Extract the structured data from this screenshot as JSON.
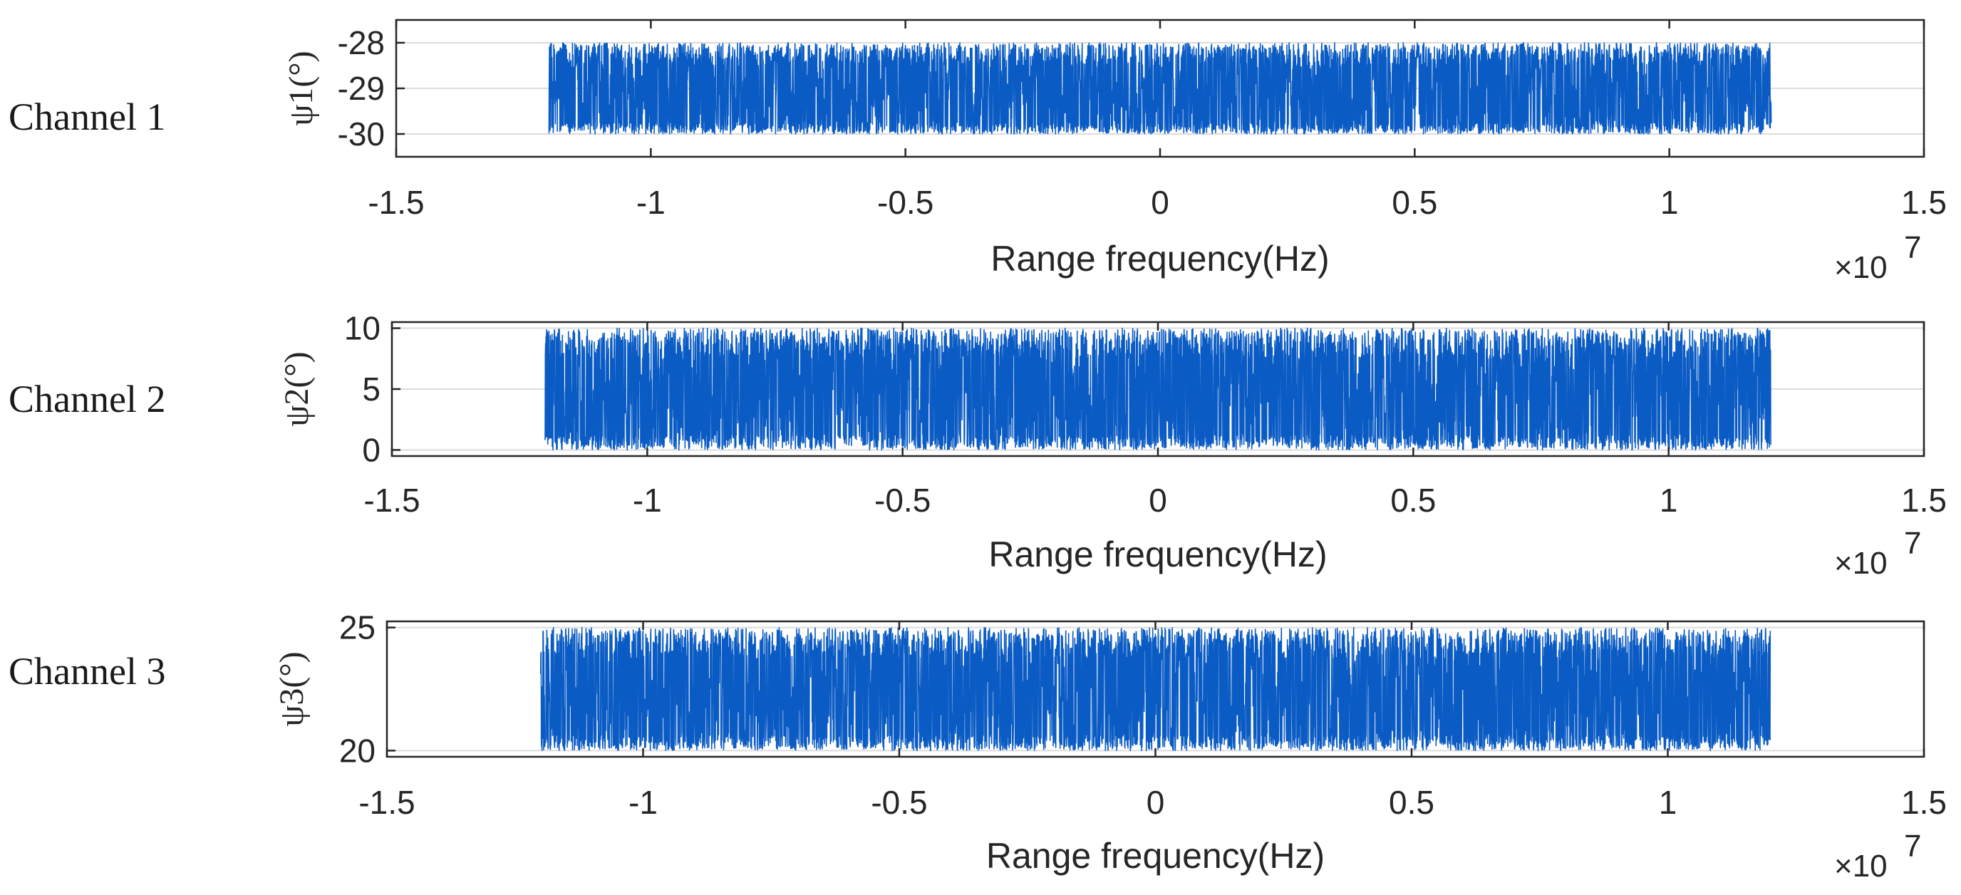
{
  "chart_data": [
    {
      "type": "line",
      "channel_label": "Channel 1",
      "title": "",
      "xlabel": "Range frequency(Hz)",
      "x_exponent": "×10",
      "x_exponent_power": "7",
      "ylabel": "ψ1(°)",
      "xlim": [
        -1.5,
        1.5
      ],
      "x_ticks": [
        "-1.5",
        "-1",
        "-0.5",
        "0",
        "0.5",
        "1",
        "1.5"
      ],
      "ylim": [
        -30.5,
        -27.5
      ],
      "y_ticks": [
        "-28",
        "-29",
        "-30"
      ],
      "y_tick_values": [
        -28,
        -29,
        -30
      ],
      "grid": "horizontal",
      "series": [
        {
          "x_range": [
            -1.2,
            1.2
          ],
          "y_min": -30,
          "y_max": -28,
          "y_center": -29,
          "pattern": "dense uniform noise"
        }
      ],
      "color": "#0a5bc4"
    },
    {
      "type": "line",
      "channel_label": "Channel 2",
      "title": "",
      "xlabel": "Range frequency(Hz)",
      "x_exponent": "×10",
      "x_exponent_power": "7",
      "ylabel": "ψ2(°)",
      "xlim": [
        -1.5,
        1.5
      ],
      "x_ticks": [
        "-1.5",
        "-1",
        "-0.5",
        "0",
        "0.5",
        "1",
        "1.5"
      ],
      "ylim": [
        -0.5,
        10.5
      ],
      "y_ticks": [
        "10",
        "5",
        "0"
      ],
      "y_tick_values": [
        10,
        5,
        0
      ],
      "grid": "horizontal",
      "series": [
        {
          "x_range": [
            -1.2,
            1.2
          ],
          "y_min": 0,
          "y_max": 10,
          "y_center": 5,
          "pattern": "dense uniform noise"
        }
      ],
      "color": "#0a5bc4"
    },
    {
      "type": "line",
      "channel_label": "Channel 3",
      "title": "",
      "xlabel": "Range frequency(Hz)",
      "x_exponent": "×10",
      "x_exponent_power": "7",
      "ylabel": "ψ3(°)",
      "xlim": [
        -1.5,
        1.5
      ],
      "x_ticks": [
        "-1.5",
        "-1",
        "-0.5",
        "0",
        "0.5",
        "1",
        "1.5"
      ],
      "ylim": [
        19.75,
        25.25
      ],
      "y_ticks": [
        "25",
        "20"
      ],
      "y_tick_values": [
        25,
        20
      ],
      "grid": "horizontal",
      "series": [
        {
          "x_range": [
            -1.2,
            1.2
          ],
          "y_min": 20,
          "y_max": 25,
          "y_center": 22.5,
          "pattern": "dense uniform noise"
        }
      ],
      "color": "#0a5bc4"
    }
  ]
}
